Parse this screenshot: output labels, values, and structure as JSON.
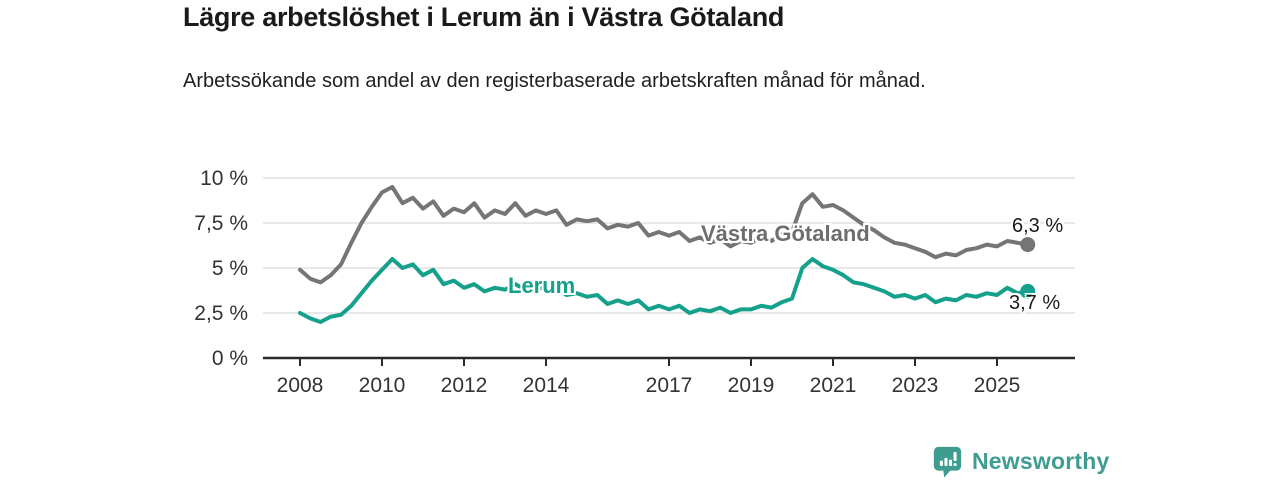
{
  "header": {
    "title": "Lägre arbetslöshet i Lerum än i Västra Götaland",
    "subtitle": "Arbetssökande som andel av den registerbaserade arbetskraften månad för månad."
  },
  "footer": {
    "brand": "Newsworthy"
  },
  "colors": {
    "vastra_gotaland_line": "#757575",
    "lerum_line": "#14a08b",
    "brand_teal": "#3e9c90",
    "grid": "#dbdbdb",
    "axis": "#2a2a2a",
    "tick_text": "#333333",
    "annotation_text": "#1a1a1a"
  },
  "chart_data": {
    "type": "line",
    "title": "Lägre arbetslöshet i Lerum än i Västra Götaland",
    "subtitle": "Arbetssökande som andel av den registerbaserade arbetskraften månad för månad.",
    "unit": "%",
    "x_start": 2008,
    "x_step": 0.25,
    "xlim": [
      2008,
      2025.75
    ],
    "ylim": [
      0,
      10
    ],
    "grid": "horizontal",
    "legend_position": "inline-labels",
    "x_ticks": [
      2008,
      2010,
      2012,
      2014,
      2017,
      2019,
      2021,
      2023,
      2025
    ],
    "y_ticks": [
      {
        "value": 0,
        "label": "0 %"
      },
      {
        "value": 2.5,
        "label": "2,5 %"
      },
      {
        "value": 5,
        "label": "5 %"
      },
      {
        "value": 7.5,
        "label": "7,5 %"
      },
      {
        "value": 10,
        "label": "10 %"
      }
    ],
    "series": [
      {
        "name": "Västra Götaland",
        "label": "Västra Götaland",
        "color": "#757575",
        "end_value": 6.3,
        "end_label": "6,3 %",
        "values": [
          4.9,
          4.4,
          4.2,
          4.6,
          5.2,
          6.4,
          7.5,
          8.4,
          9.2,
          9.5,
          8.6,
          8.9,
          8.3,
          8.7,
          7.9,
          8.3,
          8.1,
          8.6,
          7.8,
          8.2,
          8.0,
          8.6,
          7.9,
          8.2,
          8.0,
          8.2,
          7.4,
          7.7,
          7.6,
          7.7,
          7.2,
          7.4,
          7.3,
          7.5,
          6.8,
          7.0,
          6.8,
          7.0,
          6.5,
          6.7,
          6.4,
          6.6,
          6.2,
          6.5,
          6.4,
          6.7,
          6.5,
          6.9,
          7.0,
          8.6,
          9.1,
          8.4,
          8.5,
          8.2,
          7.8,
          7.4,
          7.1,
          6.7,
          6.4,
          6.3,
          6.1,
          5.9,
          5.6,
          5.8,
          5.7,
          6.0,
          6.1,
          6.3,
          6.2,
          6.5,
          6.4,
          6.3
        ]
      },
      {
        "name": "Lerum",
        "label": "Lerum",
        "color": "#14a08b",
        "end_value": 3.7,
        "end_label": "3,7 %",
        "values": [
          2.5,
          2.2,
          2.0,
          2.3,
          2.4,
          2.9,
          3.6,
          4.3,
          4.9,
          5.5,
          5.0,
          5.2,
          4.6,
          4.9,
          4.1,
          4.3,
          3.9,
          4.1,
          3.7,
          3.9,
          3.8,
          4.1,
          3.8,
          4.0,
          3.8,
          3.9,
          3.5,
          3.6,
          3.4,
          3.5,
          3.0,
          3.2,
          3.0,
          3.2,
          2.7,
          2.9,
          2.7,
          2.9,
          2.5,
          2.7,
          2.6,
          2.8,
          2.5,
          2.7,
          2.7,
          2.9,
          2.8,
          3.1,
          3.3,
          5.0,
          5.5,
          5.1,
          4.9,
          4.6,
          4.2,
          4.1,
          3.9,
          3.7,
          3.4,
          3.5,
          3.3,
          3.5,
          3.1,
          3.3,
          3.2,
          3.5,
          3.4,
          3.6,
          3.5,
          3.9,
          3.6,
          3.7
        ]
      }
    ]
  }
}
